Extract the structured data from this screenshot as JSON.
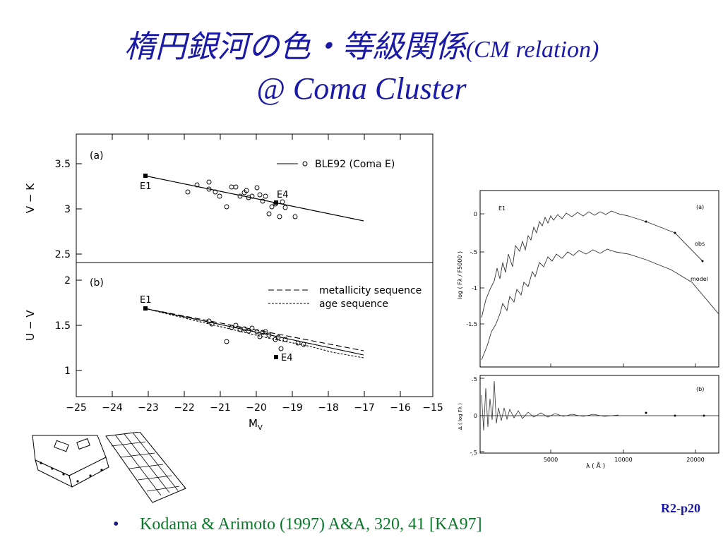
{
  "slide": {
    "title_jp": "楕円銀河の色・等級関係",
    "title_en": "(CM relation)",
    "subtitle": "@ Coma Cluster",
    "page_ref": "R2-p20",
    "bullet": "•",
    "reference": "Kodama & Arimoto (1997) A&A, 320, 41 [KA97]"
  },
  "left_figure": {
    "panel_a": {
      "label": "(a)",
      "ylabel": "V − K",
      "yticks": [
        "3.5",
        "3",
        "2.5"
      ],
      "legend": "BLE92 (Coma E)",
      "e1_label": "E1",
      "e4_label": "E4"
    },
    "panel_b": {
      "label": "(b)",
      "ylabel": "U − V",
      "yticks": [
        "2",
        "1.5",
        "1"
      ],
      "legend_metal": "metallicity sequence",
      "legend_age": "age sequence",
      "e1_label": "E1",
      "e4_label": "E4"
    },
    "xticks": [
      "−25",
      "−24",
      "−23",
      "−22",
      "−21",
      "−20",
      "−19",
      "−18",
      "−17",
      "−16",
      "−15"
    ],
    "xlabel": "M",
    "xlabel_sub": "V"
  },
  "right_figure": {
    "top_label": "(a)",
    "e1_label": "E1",
    "obs_label": "obs",
    "model_label": "model",
    "ylabel": "log ( Fλ / F5000 )",
    "yticks": [
      "0",
      "-.5",
      "-1",
      "-1.5"
    ],
    "bottom_label": "(b)",
    "bottom_ylabel": "Δ ( log Fλ )",
    "bottom_yticks": [
      ".5",
      "0",
      "-.5"
    ],
    "xticks": [
      "5000",
      "10000",
      "20000"
    ],
    "xlabel": "λ ( Å )"
  }
}
